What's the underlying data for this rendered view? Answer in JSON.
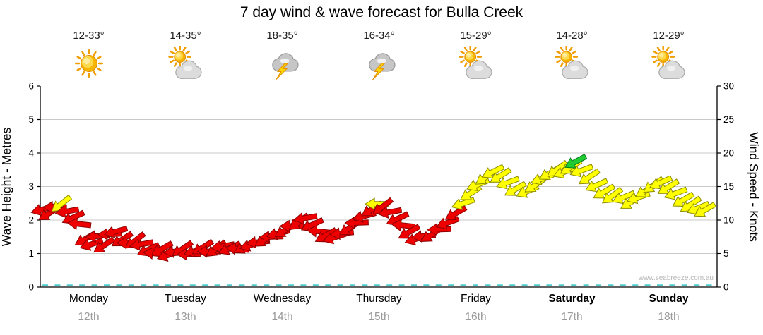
{
  "title": "7 day wind & wave forecast for Bulla Creek",
  "watermark": "www.seabreeze.com.au",
  "days": [
    {
      "name": "Monday",
      "date": "12th",
      "temp": "12-33°",
      "icon": "sunny",
      "bold": false
    },
    {
      "name": "Tuesday",
      "date": "13th",
      "temp": "14-35°",
      "icon": "partly-cloudy",
      "bold": false
    },
    {
      "name": "Wednesday",
      "date": "14th",
      "temp": "18-35°",
      "icon": "thunderstorm",
      "bold": false
    },
    {
      "name": "Thursday",
      "date": "15th",
      "temp": "16-34°",
      "icon": "thunderstorm",
      "bold": false
    },
    {
      "name": "Friday",
      "date": "16th",
      "temp": "15-29°",
      "icon": "partly-cloudy",
      "bold": false
    },
    {
      "name": "Saturday",
      "date": "17th",
      "temp": "14-28°",
      "icon": "partly-cloudy",
      "bold": true
    },
    {
      "name": "Sunday",
      "date": "18th",
      "temp": "12-29°",
      "icon": "partly-cloudy",
      "bold": true
    }
  ],
  "chart_data": {
    "type": "scatter",
    "title": "7 day wind & wave forecast for Bulla Creek",
    "y_left": {
      "label": "Wave Height - Metres",
      "range": [
        0,
        6
      ],
      "ticks": [
        0,
        1,
        2,
        3,
        4,
        5,
        6
      ]
    },
    "y_right": {
      "label": "Wind Speed - Knots",
      "range": [
        0,
        30
      ],
      "ticks": [
        0,
        5,
        10,
        15,
        20,
        25,
        30
      ]
    },
    "x_categories": [
      "Monday 12th",
      "Tuesday 13th",
      "Wednesday 14th",
      "Thursday 15th",
      "Friday 16th",
      "Saturday 17th",
      "Sunday 18th"
    ],
    "grid": "horizontal gridlines at each metre",
    "wave_height_m": {
      "description": "flat cyan dashed line near zero across all days",
      "value": 0.1
    },
    "arrow_colors": {
      "r": "#ee0000",
      "y": "#ffff00",
      "g": "#1ecb33"
    },
    "wind_arrows_schema": [
      "x_fraction_of_week",
      "wind_speed_knots",
      "arrow_rotation_deg_cw_from_east",
      "color_key"
    ],
    "wind_arrows": [
      [
        0.004,
        11.6,
        165,
        "r"
      ],
      [
        0.013,
        11.0,
        148,
        "r"
      ],
      [
        0.022,
        11.9,
        180,
        "r"
      ],
      [
        0.031,
        12.4,
        142,
        "y"
      ],
      [
        0.04,
        11.3,
        170,
        "r"
      ],
      [
        0.049,
        10.4,
        155,
        "r"
      ],
      [
        0.058,
        9.4,
        186,
        "r"
      ],
      [
        0.067,
        7.2,
        150,
        "r"
      ],
      [
        0.076,
        6.4,
        162,
        "r"
      ],
      [
        0.085,
        7.6,
        174,
        "r"
      ],
      [
        0.094,
        6.2,
        146,
        "r"
      ],
      [
        0.103,
        7.9,
        178,
        "r"
      ],
      [
        0.112,
        8.3,
        165,
        "r"
      ],
      [
        0.121,
        7.1,
        148,
        "r"
      ],
      [
        0.131,
        6.6,
        180,
        "r"
      ],
      [
        0.14,
        6.9,
        142,
        "r"
      ],
      [
        0.15,
        6.4,
        170,
        "r"
      ],
      [
        0.16,
        5.6,
        155,
        "r"
      ],
      [
        0.17,
        5.0,
        186,
        "r"
      ],
      [
        0.18,
        5.7,
        150,
        "r"
      ],
      [
        0.19,
        4.8,
        162,
        "r"
      ],
      [
        0.2,
        5.3,
        174,
        "r"
      ],
      [
        0.21,
        5.7,
        146,
        "r"
      ],
      [
        0.22,
        4.9,
        178,
        "r"
      ],
      [
        0.23,
        5.4,
        165,
        "r"
      ],
      [
        0.24,
        5.9,
        148,
        "r"
      ],
      [
        0.25,
        5.3,
        180,
        "r"
      ],
      [
        0.26,
        5.7,
        142,
        "r"
      ],
      [
        0.27,
        6.1,
        170,
        "r"
      ],
      [
        0.28,
        5.8,
        155,
        "r"
      ],
      [
        0.292,
        5.7,
        186,
        "r"
      ],
      [
        0.302,
        6.0,
        150,
        "r"
      ],
      [
        0.312,
        6.3,
        162,
        "r"
      ],
      [
        0.322,
        6.7,
        174,
        "r"
      ],
      [
        0.332,
        7.1,
        146,
        "r"
      ],
      [
        0.342,
        7.5,
        178,
        "r"
      ],
      [
        0.352,
        8.0,
        165,
        "r"
      ],
      [
        0.362,
        8.5,
        148,
        "r"
      ],
      [
        0.372,
        9.1,
        180,
        "r"
      ],
      [
        0.382,
        9.7,
        142,
        "r"
      ],
      [
        0.392,
        10.3,
        170,
        "r"
      ],
      [
        0.402,
        9.3,
        155,
        "r"
      ],
      [
        0.412,
        8.3,
        186,
        "r"
      ],
      [
        0.422,
        7.7,
        150,
        "r"
      ],
      [
        0.435,
        7.4,
        162,
        "r"
      ],
      [
        0.446,
        8.0,
        174,
        "r"
      ],
      [
        0.457,
        8.8,
        146,
        "r"
      ],
      [
        0.468,
        9.6,
        178,
        "r"
      ],
      [
        0.479,
        10.6,
        165,
        "r"
      ],
      [
        0.49,
        11.6,
        148,
        "r"
      ],
      [
        0.498,
        12.4,
        180,
        "y"
      ],
      [
        0.506,
        12.0,
        142,
        "r"
      ],
      [
        0.517,
        11.2,
        170,
        "r"
      ],
      [
        0.528,
        10.2,
        155,
        "r"
      ],
      [
        0.537,
        9.2,
        186,
        "r"
      ],
      [
        0.545,
        8.2,
        150,
        "r"
      ],
      [
        0.556,
        7.2,
        162,
        "r"
      ],
      [
        0.567,
        7.6,
        174,
        "r"
      ],
      [
        0.578,
        7.8,
        146,
        "r"
      ],
      [
        0.59,
        8.6,
        178,
        "r"
      ],
      [
        0.602,
        9.6,
        160,
        "r"
      ],
      [
        0.614,
        11.0,
        150,
        "r"
      ],
      [
        0.625,
        12.5,
        162,
        "y"
      ],
      [
        0.636,
        14.0,
        148,
        "y"
      ],
      [
        0.647,
        15.3,
        158,
        "y"
      ],
      [
        0.658,
        16.4,
        144,
        "y"
      ],
      [
        0.669,
        17.2,
        154,
        "y"
      ],
      [
        0.68,
        16.6,
        148,
        "y"
      ],
      [
        0.691,
        15.6,
        160,
        "y"
      ],
      [
        0.702,
        14.6,
        150,
        "y"
      ],
      [
        0.72,
        14.3,
        156,
        "y"
      ],
      [
        0.731,
        15.2,
        146,
        "y"
      ],
      [
        0.742,
        16.2,
        160,
        "y"
      ],
      [
        0.753,
        17.0,
        150,
        "y"
      ],
      [
        0.764,
        17.6,
        144,
        "y"
      ],
      [
        0.775,
        17.2,
        158,
        "y"
      ],
      [
        0.784,
        17.9,
        148,
        "y"
      ],
      [
        0.791,
        18.7,
        152,
        "g"
      ],
      [
        0.8,
        17.4,
        160,
        "y"
      ],
      [
        0.811,
        16.4,
        146,
        "y"
      ],
      [
        0.822,
        15.2,
        156,
        "y"
      ],
      [
        0.833,
        14.2,
        150,
        "y"
      ],
      [
        0.845,
        13.6,
        144,
        "y"
      ],
      [
        0.862,
        13.4,
        158,
        "y"
      ],
      [
        0.873,
        12.7,
        148,
        "y"
      ],
      [
        0.884,
        13.4,
        162,
        "y"
      ],
      [
        0.895,
        14.4,
        150,
        "y"
      ],
      [
        0.906,
        15.2,
        144,
        "y"
      ],
      [
        0.917,
        15.6,
        156,
        "y"
      ],
      [
        0.928,
        14.9,
        148,
        "y"
      ],
      [
        0.939,
        14.0,
        160,
        "y"
      ],
      [
        0.95,
        13.0,
        150,
        "y"
      ],
      [
        0.961,
        12.3,
        146,
        "y"
      ],
      [
        0.972,
        11.8,
        158,
        "y"
      ],
      [
        0.982,
        11.5,
        150,
        "y"
      ]
    ]
  }
}
